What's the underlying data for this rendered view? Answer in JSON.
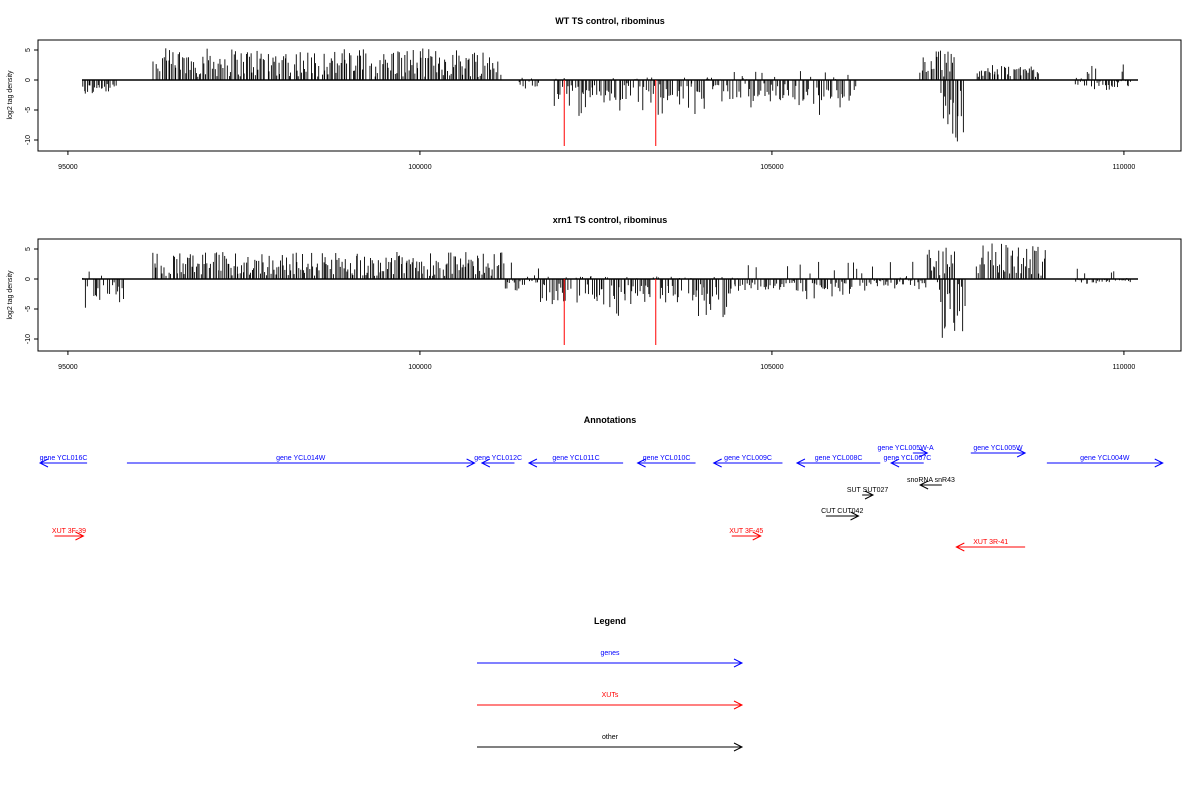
{
  "chart_data": [
    {
      "type": "bar",
      "title": "WT TS control, ribominus",
      "xlabel": "",
      "ylabel": "log2 tag density",
      "xlim": [
        95200,
        110200
      ],
      "ylim": [
        -11,
        6
      ],
      "x_ticks": [
        95000,
        100000,
        105000,
        110000
      ],
      "y_ticks": [
        5,
        0,
        -5,
        -10
      ],
      "baseline": 0,
      "red_markers": [
        {
          "x": 102050,
          "y": -11
        },
        {
          "x": 103350,
          "y": -11
        }
      ],
      "profile_segments": [
        {
          "from": 95200,
          "to": 95700,
          "min": -2.5,
          "max": -0.5
        },
        {
          "from": 96200,
          "to": 101200,
          "min": 0.5,
          "max": 5.3
        },
        {
          "from": 101400,
          "to": 101700,
          "min": -2,
          "max": 0.5
        },
        {
          "from": 101900,
          "to": 104300,
          "min": -6,
          "max": 0.5
        },
        {
          "from": 104300,
          "to": 106200,
          "min": -6,
          "max": 1.5
        },
        {
          "from": 107100,
          "to": 107600,
          "min": 0.5,
          "max": 5
        },
        {
          "from": 107400,
          "to": 107750,
          "min": -11,
          "max": -1
        },
        {
          "from": 107900,
          "to": 108800,
          "min": 0.5,
          "max": 2.5
        },
        {
          "from": 109300,
          "to": 110100,
          "min": -2,
          "max": 3
        }
      ]
    },
    {
      "type": "bar",
      "title": "xrn1 TS control, ribominus",
      "xlabel": "",
      "ylabel": "log2 tag density",
      "xlim": [
        95200,
        110200
      ],
      "ylim": [
        -11,
        6
      ],
      "x_ticks": [
        95000,
        100000,
        105000,
        110000
      ],
      "y_ticks": [
        5,
        0,
        -5,
        -10
      ],
      "baseline": 0,
      "red_markers": [
        {
          "x": 102050,
          "y": -11
        },
        {
          "x": 103350,
          "y": -11
        }
      ],
      "profile_segments": [
        {
          "from": 95200,
          "to": 95800,
          "min": -5,
          "max": 1.5
        },
        {
          "from": 96200,
          "to": 101200,
          "min": 0.5,
          "max": 4.5
        },
        {
          "from": 101200,
          "to": 101700,
          "min": -2,
          "max": 3
        },
        {
          "from": 101700,
          "to": 104500,
          "min": -6.5,
          "max": 0.5
        },
        {
          "from": 104500,
          "to": 106400,
          "min": -3.5,
          "max": 3
        },
        {
          "from": 106400,
          "to": 107200,
          "min": -2,
          "max": 3
        },
        {
          "from": 107200,
          "to": 107600,
          "min": 0.5,
          "max": 5.5
        },
        {
          "from": 107350,
          "to": 107750,
          "min": -10.5,
          "max": -0.5
        },
        {
          "from": 107900,
          "to": 108900,
          "min": 0.5,
          "max": 6
        },
        {
          "from": 109300,
          "to": 110100,
          "min": -1,
          "max": 2.5
        }
      ]
    }
  ],
  "annotations": {
    "title": "Annotations",
    "features": [
      {
        "label": "gene YCL016C",
        "start": 95200,
        "end": 95850,
        "strand": "-",
        "kind": "gene"
      },
      {
        "label": "gene YCL014W",
        "start": 96400,
        "end": 101200,
        "strand": "+",
        "kind": "gene"
      },
      {
        "label": "gene YCL012C",
        "start": 101300,
        "end": 101750,
        "strand": "-",
        "kind": "gene"
      },
      {
        "label": "gene YCL011C",
        "start": 101950,
        "end": 103250,
        "strand": "-",
        "kind": "gene"
      },
      {
        "label": "gene YCL010C",
        "start": 103450,
        "end": 104250,
        "strand": "-",
        "kind": "gene"
      },
      {
        "label": "gene YCL009C",
        "start": 104500,
        "end": 105450,
        "strand": "-",
        "kind": "gene"
      },
      {
        "label": "gene YCL008C",
        "start": 105650,
        "end": 106800,
        "strand": "-",
        "kind": "gene"
      },
      {
        "label": "gene YCL005W-A",
        "start": 107250,
        "end": 107450,
        "strand": "+",
        "kind": "gene",
        "label_x": 107150,
        "row": "upper"
      },
      {
        "label": "gene YCL007C",
        "start": 106950,
        "end": 107400,
        "strand": "-",
        "kind": "gene"
      },
      {
        "label": "gene YCL005W",
        "start": 108050,
        "end": 108800,
        "strand": "+",
        "kind": "gene",
        "row": "upper"
      },
      {
        "label": "gene YCL004W",
        "start": 109100,
        "end": 110700,
        "strand": "+",
        "kind": "gene"
      },
      {
        "label": "snoRNA snR43",
        "start": 107350,
        "end": 107650,
        "strand": "-",
        "kind": "other"
      },
      {
        "label": "SUT SUT027",
        "start": 106550,
        "end": 106700,
        "strand": "+",
        "kind": "other"
      },
      {
        "label": "CUT CUT042",
        "start": 106050,
        "end": 106500,
        "strand": "+",
        "kind": "other"
      },
      {
        "label": "XUT 3F-39",
        "start": 95400,
        "end": 95800,
        "strand": "+",
        "kind": "xut"
      },
      {
        "label": "XUT 3F-45",
        "start": 104750,
        "end": 105150,
        "strand": "+",
        "kind": "xut"
      },
      {
        "label": "XUT 3R-41",
        "start": 107850,
        "end": 108800,
        "strand": "-",
        "kind": "xut"
      }
    ]
  },
  "legend": {
    "title": "Legend",
    "items": [
      {
        "label": "genes",
        "color": "#0000ff"
      },
      {
        "label": "XUTs",
        "color": "#ff0000"
      },
      {
        "label": "other",
        "color": "#000000"
      }
    ]
  },
  "colors": {
    "gene": "#0000ff",
    "xut": "#ff0000",
    "other": "#000000",
    "red_marker": "#ff0000",
    "bars": "#000000"
  }
}
